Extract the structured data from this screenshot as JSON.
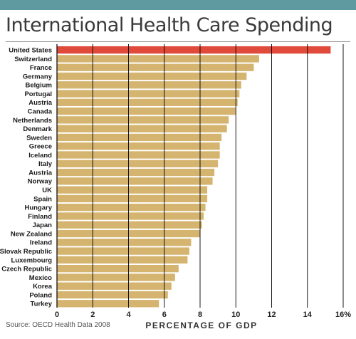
{
  "chart_data": {
    "type": "bar",
    "orientation": "horizontal",
    "title": "International Health Care Spending",
    "xlabel": "PERCENTAGE OF GDP",
    "ylabel": "",
    "xlim": [
      0,
      16
    ],
    "x_ticks": [
      "0",
      "2",
      "4",
      "6",
      "8",
      "10",
      "12",
      "14",
      "16%"
    ],
    "grid": "vertical",
    "source": "Source: OECD Health Data 2008",
    "categories": [
      "United States",
      "Switzerland",
      "France",
      "Germany",
      "Belgium",
      "Portugal",
      "Austria",
      "Canada",
      "Netherlands",
      "Denmark",
      "Sweden",
      "Greece",
      "Iceland",
      "Italy",
      "Austria",
      "Norway",
      "UK",
      "Spain",
      "Hungary",
      "Finland",
      "Japan",
      "New Zealand",
      "Ireland",
      "Slovak Republic",
      "Luxembourg",
      "Czech Republic",
      "Mexico",
      "Korea",
      "Poland",
      "Turkey"
    ],
    "values": [
      15.3,
      11.3,
      11.0,
      10.6,
      10.3,
      10.2,
      10.1,
      10.0,
      9.6,
      9.5,
      9.2,
      9.1,
      9.1,
      9.0,
      8.8,
      8.7,
      8.4,
      8.4,
      8.3,
      8.2,
      8.1,
      8.0,
      7.5,
      7.4,
      7.3,
      6.8,
      6.6,
      6.4,
      6.2,
      5.7
    ],
    "colors": {
      "highlight": "#e04a3a",
      "bar": "#d4b46e",
      "grid": "#000000"
    }
  }
}
